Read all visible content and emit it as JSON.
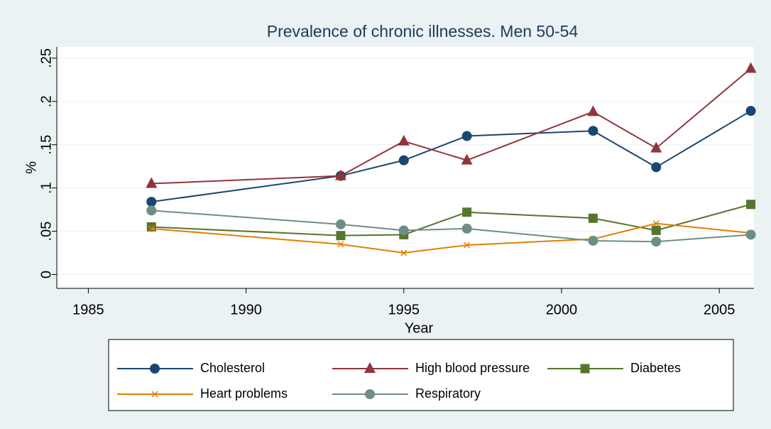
{
  "chart_data": {
    "type": "line",
    "title": "Prevalence of chronic illnesses. Men 50-54",
    "x_label": "Year",
    "y_label": "%",
    "x": [
      1987,
      1993,
      1995,
      1997,
      2001,
      2003,
      2006
    ],
    "series": [
      {
        "name": "Cholesterol",
        "color": "#1a476f",
        "marker": "circle",
        "values": [
          0.084,
          0.114,
          0.132,
          0.16,
          0.166,
          0.124,
          0.189
        ]
      },
      {
        "name": "High blood pressure",
        "color": "#90353b",
        "marker": "triangle",
        "values": [
          0.105,
          0.114,
          0.154,
          0.132,
          0.188,
          0.146,
          0.238
        ]
      },
      {
        "name": "Diabetes",
        "color": "#55752f",
        "marker": "square",
        "values": [
          0.055,
          0.045,
          0.046,
          0.072,
          0.065,
          0.051,
          0.081
        ]
      },
      {
        "name": "Heart problems",
        "color": "#e37e00",
        "marker": "x",
        "values": [
          0.053,
          0.035,
          0.025,
          0.034,
          0.041,
          0.059,
          0.048
        ]
      },
      {
        "name": "Respiratory",
        "color": "#6e8e84",
        "marker": "circle",
        "values": [
          0.074,
          0.058,
          0.051,
          0.053,
          0.039,
          0.038,
          0.046
        ]
      }
    ],
    "xlim": [
      1984,
      2006.1
    ],
    "xticks": [
      1985,
      1990,
      1995,
      2000,
      2005
    ],
    "ylim": [
      -0.016,
      0.263
    ],
    "yticks": [
      0,
      {
        "value": 0.05,
        "label": ".05"
      },
      {
        "value": 0.1,
        "label": ".1"
      },
      {
        "value": 0.15,
        "label": ".15"
      },
      {
        "value": 0.2,
        "label": ".2"
      },
      {
        "value": 0.25,
        "label": ".25"
      }
    ],
    "grid": true,
    "legend": "bottom"
  }
}
